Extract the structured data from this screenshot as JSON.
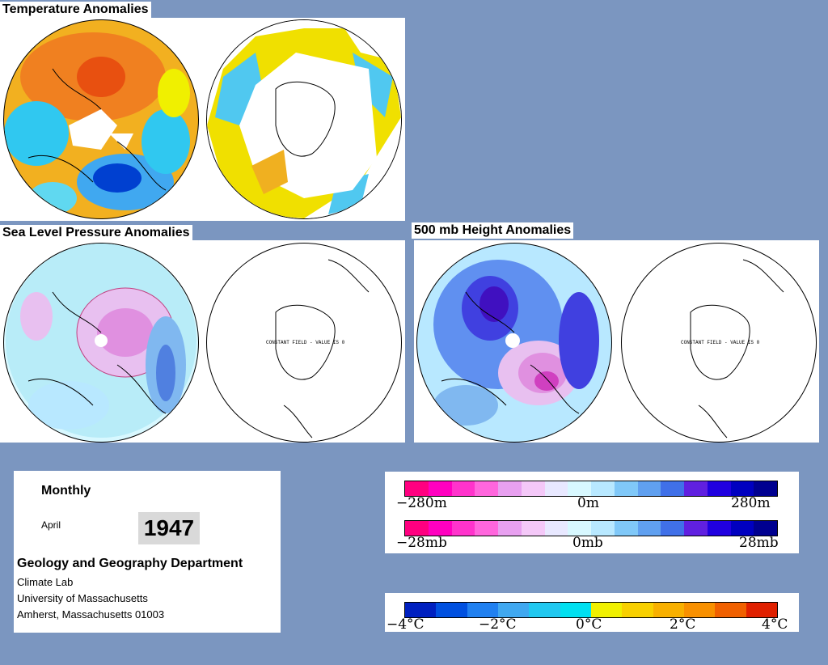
{
  "titles": {
    "temperature": "Temperature Anomalies",
    "slp": "Sea Level Pressure Anomalies",
    "height500": "500 mb Height Anomalies"
  },
  "constant_field_label": "CONSTANT FIELD - VALUE IS 0",
  "info": {
    "frequency": "Monthly",
    "month": "April",
    "year": "1947",
    "department": "Geology and Geography Department",
    "lab": "Climate Lab",
    "university": "University of Massachusetts",
    "address": "Amherst, Massachusetts 01003"
  },
  "legend_height": {
    "labels": [
      "−280m",
      "0m",
      "280m"
    ],
    "colors": [
      "#ff0080",
      "#ff00c0",
      "#ff33cc",
      "#ff66dd",
      "#e8a0f0",
      "#f4c8f8",
      "#e8e8ff",
      "#d8f8ff",
      "#b8e8ff",
      "#80c8f8",
      "#60a0f0",
      "#4070e8",
      "#6020e0",
      "#2000e0",
      "#0000c0",
      "#000090"
    ]
  },
  "legend_pressure": {
    "labels": [
      "−28mb",
      "0mb",
      "28mb"
    ],
    "colors": [
      "#ff0080",
      "#ff00c0",
      "#ff33cc",
      "#ff66dd",
      "#e8a0f0",
      "#f4c8f8",
      "#e8e8ff",
      "#d8f8ff",
      "#b8e8ff",
      "#80c8f8",
      "#60a0f0",
      "#4070e8",
      "#6020e0",
      "#2000e0",
      "#0000c0",
      "#000090"
    ]
  },
  "legend_temperature": {
    "labels": [
      "−4°C",
      "−2°C",
      "0°C",
      "2°C",
      "4°C"
    ],
    "colors": [
      "#0020c0",
      "#0050e0",
      "#2080f0",
      "#40a8f0",
      "#20c8f0",
      "#00e0f0",
      "#f0f000",
      "#f8d000",
      "#f8b000",
      "#f89000",
      "#f06000",
      "#e02000"
    ]
  }
}
